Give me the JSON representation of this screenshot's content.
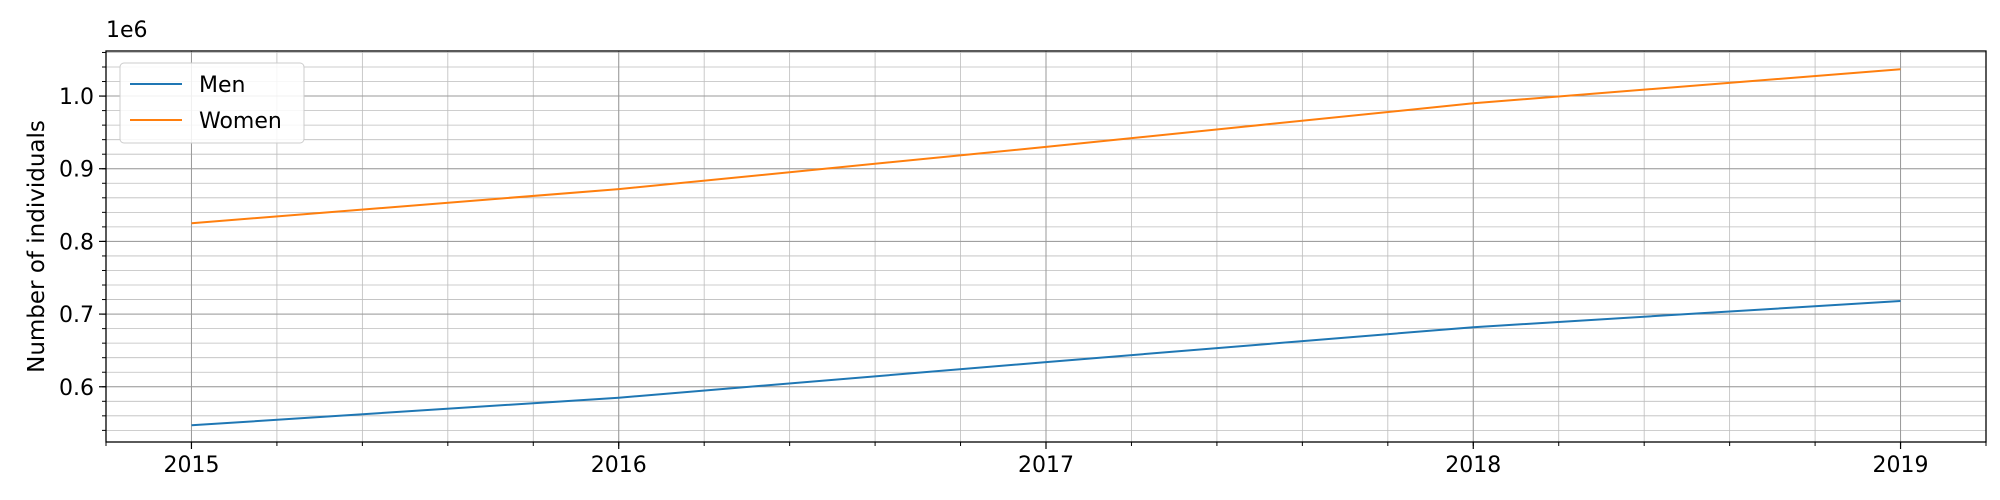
{
  "chart_data": {
    "type": "line",
    "title": "",
    "xlabel": "",
    "ylabel": "Number of individuals",
    "offset_label": "1e6",
    "x": [
      2015,
      2016,
      2017,
      2018,
      2019
    ],
    "x_tick_labels": [
      "2015",
      "2016",
      "2017",
      "2018",
      "2019"
    ],
    "xlim": [
      2014.8,
      2019.2
    ],
    "y_ticks": [
      0.6,
      0.7,
      0.8,
      0.9,
      1.0
    ],
    "y_tick_labels": [
      "0.6",
      "0.7",
      "0.8",
      "0.9",
      "1.0"
    ],
    "ylim": [
      0.524,
      1.062
    ],
    "y_scale": 1000000,
    "grid": true,
    "minor_grid": true,
    "legend_position": "upper-left",
    "series": [
      {
        "name": "Men",
        "color": "#1f77b4",
        "values": [
          0.547,
          0.585,
          0.634,
          0.682,
          0.718
        ]
      },
      {
        "name": "Women",
        "color": "#ff7f0e",
        "values": [
          0.825,
          0.872,
          0.93,
          0.99,
          1.037
        ]
      }
    ]
  }
}
